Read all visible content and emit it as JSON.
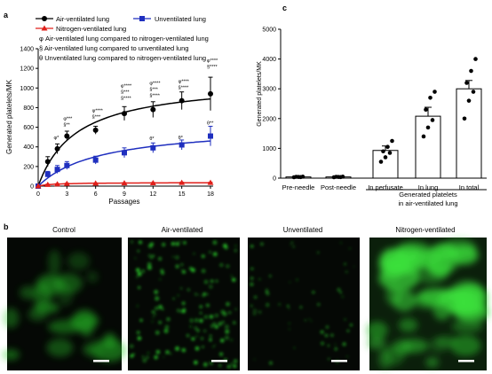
{
  "panel_labels": {
    "a": "a",
    "b": "b",
    "c": "c"
  },
  "legend": {
    "air": "Air-ventilated lung",
    "unvent": "Unventilated lung",
    "nitro": "Nitrogen-ventilated lung",
    "sym1": "φ Air-ventilated lung compared to nitrogen-ventilated lung",
    "sym2": "§ Air-ventilated lung compared to unventilated lung",
    "sym3": "θ Unventilated lung compared to nitrogen-ventilated lung"
  },
  "images": {
    "control": "Control",
    "air": "Air-ventilated",
    "unvent": "Unventilated",
    "nitro": "Nitrogen-ventilated"
  },
  "colors": {
    "air": "#000000",
    "unvent": "#1f2fbf",
    "nitro": "#e0201b",
    "micrograph_bg": "#050805",
    "fluor": "#2bd42b"
  },
  "chart_data": [
    {
      "type": "line",
      "panel": "a",
      "xlabel": "Passages",
      "ylabel": "Generated platelets/MK",
      "x": [
        0,
        1,
        2,
        3,
        6,
        9,
        12,
        15,
        18
      ],
      "xticks": [
        0,
        3,
        6,
        9,
        12,
        15,
        18
      ],
      "yticks": [
        0,
        200,
        400,
        600,
        800,
        1000,
        1200,
        1400
      ],
      "xlim": [
        0,
        18
      ],
      "ylim": [
        0,
        1400
      ],
      "fit_curves": true,
      "series": [
        {
          "name": "Air-ventilated lung",
          "color": "#000000",
          "marker": "circle",
          "values": [
            0,
            250,
            380,
            510,
            570,
            740,
            780,
            870,
            940
          ],
          "errors": [
            0,
            50,
            50,
            50,
            40,
            70,
            80,
            90,
            170
          ]
        },
        {
          "name": "Unventilated lung",
          "color": "#1f2fbf",
          "marker": "square",
          "values": [
            0,
            120,
            170,
            210,
            265,
            340,
            390,
            420,
            510
          ],
          "errors": [
            0,
            30,
            40,
            40,
            40,
            50,
            50,
            50,
            100
          ]
        },
        {
          "name": "Nitrogen-ventilated lung",
          "color": "#e0201b",
          "marker": "triangle",
          "values": [
            0,
            15,
            20,
            25,
            28,
            30,
            32,
            35,
            35
          ],
          "errors": [
            0,
            5,
            5,
            5,
            5,
            5,
            5,
            5,
            5
          ]
        }
      ],
      "annotations": [
        {
          "x": 2,
          "y": 480,
          "lines": [
            "φ*"
          ]
        },
        {
          "x": 3,
          "y": 610,
          "lines": [
            "φ***",
            "§**"
          ]
        },
        {
          "x": 6,
          "y": 690,
          "lines": [
            "φ****",
            "§***"
          ]
        },
        {
          "x": 9,
          "y": 880,
          "lines": [
            "φ****",
            "§***",
            "§****"
          ]
        },
        {
          "x": 12,
          "y": 910,
          "lines": [
            "φ****",
            "§***",
            "§****"
          ]
        },
        {
          "x": 12,
          "y": 470,
          "lines": [
            "θ*"
          ]
        },
        {
          "x": 15,
          "y": 990,
          "lines": [
            "φ****",
            "§****"
          ]
        },
        {
          "x": 15,
          "y": 480,
          "lines": [
            "θ*"
          ]
        },
        {
          "x": 18,
          "y": 1200,
          "lines": [
            "φ****",
            "§****"
          ]
        },
        {
          "x": 18,
          "y": 630,
          "lines": [
            "θ**"
          ]
        }
      ]
    },
    {
      "type": "bar",
      "panel": "c",
      "ylabel": "Generated platelets/MK",
      "categories": [
        "Pre-needle",
        "Post-needle",
        "In perfusate",
        "In lung",
        "In total"
      ],
      "values": [
        40,
        40,
        930,
        2080,
        3000
      ],
      "errors": [
        10,
        10,
        150,
        300,
        280
      ],
      "points": [
        [
          30,
          40,
          50,
          45,
          35
        ],
        [
          30,
          40,
          50,
          45,
          35
        ],
        [
          550,
          700,
          850,
          900,
          1050,
          1250
        ],
        [
          1400,
          1700,
          1950,
          2300,
          2700,
          2900
        ],
        [
          2000,
          2600,
          2900,
          3200,
          3600,
          4000
        ]
      ],
      "ylim": [
        0,
        5000
      ],
      "yticks": [
        0,
        1000,
        2000,
        3000,
        4000,
        5000
      ],
      "bracket_label": "Generated platelets in air-ventilated lung",
      "bracket_lines": [
        "Generated platelets",
        "in air-ventilated lung"
      ]
    }
  ]
}
